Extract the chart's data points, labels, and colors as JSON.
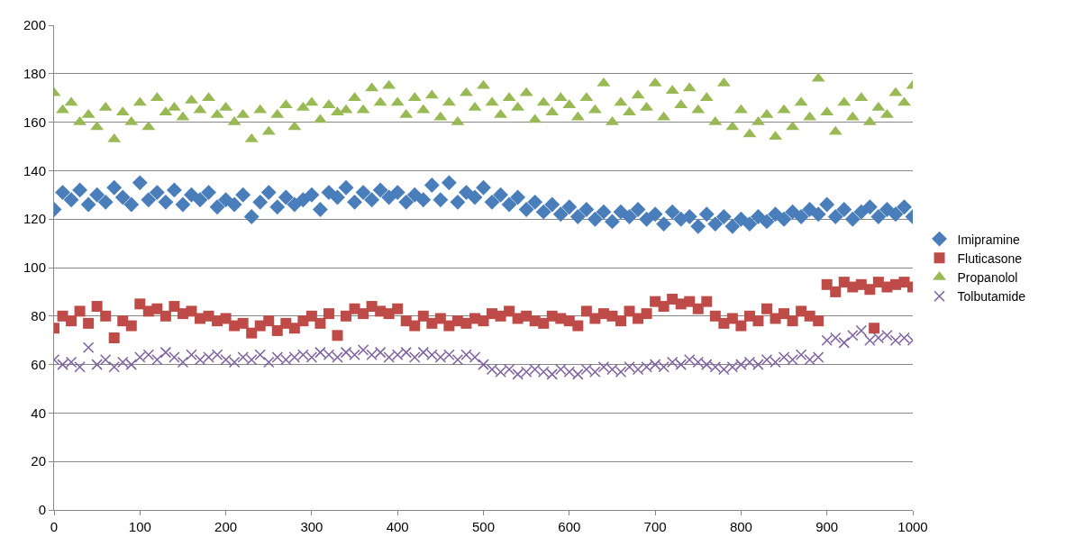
{
  "chart_data": {
    "type": "scatter",
    "x": [
      0,
      10,
      20,
      30,
      40,
      50,
      60,
      70,
      80,
      90,
      100,
      110,
      120,
      130,
      140,
      150,
      160,
      170,
      180,
      190,
      200,
      210,
      220,
      230,
      240,
      250,
      260,
      270,
      280,
      290,
      300,
      310,
      320,
      330,
      340,
      350,
      360,
      370,
      380,
      390,
      400,
      410,
      420,
      430,
      440,
      450,
      460,
      470,
      480,
      490,
      500,
      510,
      520,
      530,
      540,
      550,
      560,
      570,
      580,
      590,
      600,
      610,
      620,
      630,
      640,
      650,
      660,
      670,
      680,
      690,
      700,
      710,
      720,
      730,
      740,
      750,
      760,
      770,
      780,
      790,
      800,
      810,
      820,
      830,
      840,
      850,
      860,
      870,
      880,
      890,
      900,
      910,
      920,
      930,
      940,
      950,
      960,
      970,
      980,
      990,
      1000
    ],
    "series": [
      {
        "name": "Imipramine",
        "color": "#4a7ebb",
        "marker": "diamond",
        "values": [
          124,
          131,
          128,
          132,
          126,
          130,
          127,
          133,
          129,
          126,
          135,
          128,
          131,
          127,
          132,
          126,
          130,
          128,
          131,
          125,
          128,
          126,
          130,
          121,
          127,
          131,
          125,
          129,
          126,
          128,
          130,
          124,
          131,
          129,
          133,
          127,
          131,
          128,
          132,
          129,
          131,
          127,
          130,
          128,
          134,
          128,
          135,
          127,
          131,
          129,
          133,
          127,
          130,
          126,
          129,
          124,
          127,
          123,
          126,
          122,
          125,
          121,
          124,
          120,
          123,
          119,
          123,
          121,
          124,
          120,
          122,
          118,
          123,
          120,
          121,
          117,
          122,
          118,
          121,
          117,
          120,
          118,
          121,
          119,
          122,
          120,
          123,
          121,
          124,
          122,
          126,
          121,
          124,
          120,
          123,
          125,
          121,
          124,
          122,
          125,
          121
        ]
      },
      {
        "name": "Fluticasone",
        "color": "#be4b48",
        "marker": "square",
        "x": [
          0,
          10,
          20,
          30,
          40,
          50,
          60,
          70,
          80,
          90,
          100,
          110,
          120,
          130,
          140,
          150,
          160,
          170,
          180,
          190,
          200,
          210,
          220,
          230,
          240,
          250,
          260,
          270,
          280,
          290,
          300,
          310,
          320,
          330,
          340,
          350,
          360,
          370,
          380,
          390,
          400,
          410,
          420,
          430,
          440,
          450,
          460,
          470,
          480,
          490,
          500,
          510,
          520,
          530,
          540,
          550,
          560,
          570,
          580,
          590,
          600,
          610,
          620,
          630,
          640,
          650,
          660,
          670,
          680,
          690,
          700,
          710,
          720,
          730,
          740,
          750,
          760,
          770,
          780,
          790,
          800,
          810,
          820,
          830,
          840,
          850,
          860,
          870,
          880,
          890,
          900,
          910,
          920,
          930,
          940,
          950,
          955,
          960,
          970,
          980,
          990,
          1000
        ],
        "values": [
          75,
          80,
          78,
          82,
          77,
          84,
          80,
          71,
          78,
          76,
          85,
          82,
          83,
          80,
          84,
          81,
          82,
          79,
          80,
          78,
          79,
          76,
          77,
          73,
          76,
          78,
          74,
          77,
          75,
          78,
          80,
          77,
          81,
          72,
          80,
          83,
          81,
          84,
          82,
          81,
          83,
          78,
          76,
          80,
          77,
          79,
          76,
          78,
          77,
          79,
          78,
          81,
          80,
          82,
          79,
          80,
          78,
          77,
          80,
          79,
          78,
          76,
          82,
          79,
          81,
          80,
          78,
          82,
          79,
          81,
          86,
          84,
          87,
          85,
          86,
          83,
          86,
          80,
          77,
          79,
          76,
          80,
          78,
          83,
          79,
          81,
          78,
          82,
          80,
          78,
          93,
          90,
          94,
          92,
          93,
          91,
          75,
          94,
          92,
          93,
          94,
          92
        ]
      },
      {
        "name": "Propanolol",
        "color": "#98b954",
        "marker": "triangle",
        "values": [
          172,
          165,
          168,
          160,
          163,
          158,
          166,
          153,
          164,
          160,
          168,
          158,
          170,
          164,
          166,
          162,
          169,
          165,
          170,
          163,
          166,
          160,
          163,
          153,
          165,
          156,
          163,
          167,
          158,
          166,
          168,
          161,
          167,
          164,
          165,
          170,
          165,
          174,
          168,
          175,
          168,
          163,
          170,
          165,
          171,
          162,
          168,
          160,
          172,
          166,
          175,
          168,
          163,
          170,
          166,
          172,
          161,
          168,
          164,
          170,
          167,
          162,
          170,
          165,
          176,
          160,
          168,
          164,
          171,
          166,
          176,
          162,
          173,
          167,
          174,
          165,
          170,
          160,
          176,
          158,
          165,
          155,
          160,
          163,
          154,
          165,
          158,
          168,
          162,
          178,
          164,
          156,
          168,
          162,
          170,
          160,
          166,
          163,
          172,
          168,
          175
        ]
      },
      {
        "name": "Tolbutamide",
        "color": "#7d60a0",
        "marker": "cross",
        "values": [
          62,
          60,
          61,
          59,
          67,
          60,
          62,
          59,
          61,
          60,
          63,
          64,
          62,
          65,
          63,
          61,
          64,
          62,
          63,
          64,
          62,
          61,
          63,
          62,
          64,
          61,
          63,
          62,
          63,
          64,
          63,
          65,
          64,
          63,
          65,
          64,
          66,
          64,
          65,
          63,
          64,
          65,
          63,
          65,
          64,
          63,
          64,
          62,
          64,
          63,
          60,
          58,
          57,
          58,
          56,
          57,
          58,
          57,
          56,
          58,
          57,
          56,
          58,
          57,
          59,
          58,
          57,
          59,
          58,
          59,
          60,
          59,
          61,
          60,
          62,
          61,
          60,
          59,
          58,
          59,
          60,
          61,
          60,
          62,
          61,
          63,
          62,
          64,
          62,
          63,
          70,
          71,
          69,
          72,
          74,
          70,
          71,
          72,
          70,
          71,
          70
        ]
      }
    ],
    "xlim": [
      0,
      1000
    ],
    "xticks": [
      0,
      100,
      200,
      300,
      400,
      500,
      600,
      700,
      800,
      900,
      1000
    ],
    "ylim": [
      0,
      200
    ],
    "yticks": [
      0,
      20,
      40,
      60,
      80,
      100,
      120,
      140,
      160,
      180,
      200
    ],
    "grid": "y",
    "legend": "right"
  }
}
